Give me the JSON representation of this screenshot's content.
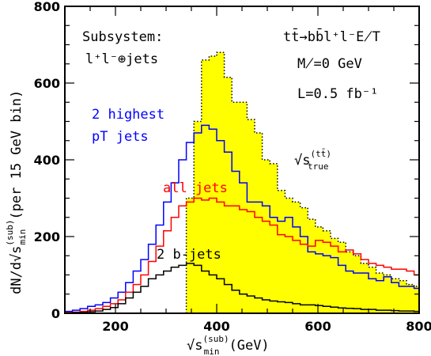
{
  "chart_data": {
    "type": "line",
    "xlabel": {
      "base": "√s",
      "sup": "(sub)",
      "sub": "min",
      "unit": "(GeV)"
    },
    "ylabel": {
      "text": "dN/d√s",
      "sup": "(sub)",
      "sub": "min",
      "unit": "(per 15 GeV bin)"
    },
    "xlim": [
      100,
      800
    ],
    "ylim": [
      0,
      800
    ],
    "x_ticks": [
      200,
      400,
      600,
      800
    ],
    "y_ticks": [
      0,
      200,
      400,
      600,
      800
    ],
    "bin_width": 15,
    "bins_start": 100,
    "series": [
      {
        "name": "√s(tt̄) true",
        "color": "#ffff00",
        "style": "filled-dotted",
        "bin_start": 340,
        "values": [
          300,
          500,
          660,
          670,
          680,
          615,
          550,
          550,
          505,
          470,
          400,
          390,
          320,
          300,
          290,
          275,
          245,
          225,
          215,
          195,
          185,
          160,
          150,
          130,
          120,
          105,
          100,
          90,
          85,
          75,
          70,
          60,
          55,
          50,
          45,
          40
        ]
      },
      {
        "name": "2 highest pT jets",
        "color": "#0000ff",
        "style": "step",
        "bin_start": 100,
        "values": [
          5,
          8,
          12,
          18,
          22,
          28,
          40,
          55,
          80,
          110,
          140,
          180,
          230,
          290,
          340,
          400,
          445,
          470,
          490,
          480,
          450,
          420,
          370,
          340,
          290,
          290,
          280,
          250,
          240,
          250,
          225,
          200,
          160,
          155,
          150,
          145,
          125,
          110,
          105,
          105,
          90,
          85,
          95,
          80,
          70,
          70,
          65,
          60,
          55,
          50
        ]
      },
      {
        "name": "all jets",
        "color": "#ff0000",
        "style": "step",
        "bin_start": 100,
        "values": [
          2,
          3,
          5,
          8,
          12,
          18,
          25,
          35,
          55,
          75,
          100,
          135,
          175,
          215,
          250,
          280,
          290,
          300,
          295,
          300,
          290,
          280,
          280,
          270,
          265,
          250,
          240,
          230,
          205,
          200,
          190,
          180,
          175,
          190,
          185,
          175,
          160,
          165,
          155,
          140,
          130,
          125,
          120,
          115,
          115,
          110,
          100,
          95,
          85,
          80
        ]
      },
      {
        "name": "2 b-jets",
        "color": "#000000",
        "style": "step",
        "bin_start": 100,
        "values": [
          1,
          2,
          2,
          4,
          6,
          10,
          15,
          25,
          40,
          55,
          70,
          90,
          100,
          110,
          120,
          125,
          130,
          125,
          110,
          100,
          90,
          75,
          60,
          50,
          45,
          40,
          35,
          32,
          30,
          28,
          25,
          22,
          22,
          20,
          18,
          16,
          14,
          13,
          12,
          10,
          10,
          8,
          8,
          7,
          6,
          6,
          5,
          5,
          4,
          4
        ]
      }
    ]
  },
  "annotations": {
    "subsystem_title": "Subsystem:",
    "subsystem_value": "l⁺l⁻⊕jets",
    "process": "tt̄→bb̄l⁺l⁻E̸T",
    "mass": "M̸=0 GeV",
    "lumi": "L=0.5 fb⁻¹",
    "label_true": "√s",
    "label_true_sup": "(tt̄)",
    "label_true_sub": "true",
    "label_blue_1": "2 highest",
    "label_blue_2": "pT jets",
    "label_red": "all jets",
    "label_black": "2 b-jets"
  }
}
